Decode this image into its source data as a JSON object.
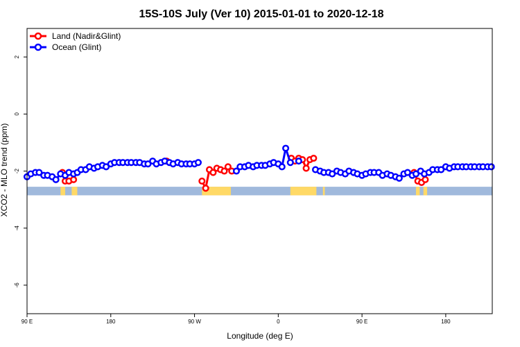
{
  "chart_data": {
    "type": "line",
    "title": "15S-10S July (Ver 10)   2015-01-01 to 2020-12-18",
    "xlabel": "Longitude (deg E)",
    "ylabel": "XCO2 - MLO trend (ppm)",
    "xlim": [
      90,
      590
    ],
    "ylim": [
      -7,
      3
    ],
    "x_ticks": [
      {
        "value": 90,
        "label": "90 E"
      },
      {
        "value": 180,
        "label": "180"
      },
      {
        "value": 270,
        "label": "90 W"
      },
      {
        "value": 360,
        "label": "0"
      },
      {
        "value": 450,
        "label": "90 E"
      },
      {
        "value": 540,
        "label": "180"
      }
    ],
    "y_ticks": [
      -6,
      -4,
      -2,
      0,
      2
    ],
    "grid": false,
    "legend_position": "top-left",
    "series": [
      {
        "name": "Land (Nadir&Glint)",
        "color": "#ff0000",
        "x": [
          128,
          131,
          135,
          140,
          240,
          278,
          282,
          286,
          290,
          294,
          298,
          302,
          306,
          310,
          374,
          378,
          382,
          386,
          390,
          394,
          398,
          506,
          510,
          514,
          518
        ],
        "y": [
          -2.05,
          -2.35,
          -2.35,
          -2.3,
          -1.65,
          -2.35,
          -2.6,
          -1.95,
          -2.05,
          -1.9,
          -1.95,
          -2.0,
          -1.85,
          -2.0,
          -1.55,
          -1.65,
          -1.55,
          -1.6,
          -1.9,
          -1.6,
          -1.55,
          -2.05,
          -2.35,
          -2.4,
          -2.3
        ]
      },
      {
        "name": "Ocean (Glint)",
        "color": "#0000ff",
        "x": [
          90,
          94,
          99,
          103,
          108,
          112,
          117,
          121,
          126,
          131,
          135,
          140,
          144,
          148,
          153,
          157,
          162,
          166,
          171,
          175,
          180,
          184,
          189,
          193,
          198,
          202,
          207,
          211,
          216,
          220,
          225,
          229,
          234,
          238,
          243,
          247,
          252,
          256,
          261,
          265,
          270,
          274,
          315,
          319,
          324,
          328,
          333,
          337,
          342,
          346,
          351,
          355,
          360,
          364,
          368,
          373,
          382,
          400,
          405,
          409,
          414,
          418,
          423,
          427,
          432,
          436,
          441,
          445,
          450,
          454,
          459,
          463,
          468,
          472,
          477,
          481,
          486,
          490,
          495,
          499,
          504,
          508,
          513,
          517,
          522,
          526,
          531,
          535,
          540,
          544,
          549,
          553,
          558,
          562,
          567,
          571,
          576,
          580,
          585,
          589
        ],
        "y": [
          -2.2,
          -2.1,
          -2.05,
          -2.05,
          -2.15,
          -2.15,
          -2.2,
          -2.3,
          -2.1,
          -2.15,
          -2.05,
          -2.1,
          -2.05,
          -1.95,
          -1.95,
          -1.85,
          -1.9,
          -1.85,
          -1.8,
          -1.85,
          -1.75,
          -1.7,
          -1.7,
          -1.7,
          -1.7,
          -1.7,
          -1.7,
          -1.7,
          -1.75,
          -1.75,
          -1.65,
          -1.75,
          -1.7,
          -1.65,
          -1.7,
          -1.75,
          -1.7,
          -1.75,
          -1.75,
          -1.75,
          -1.75,
          -1.7,
          -2.0,
          -1.85,
          -1.85,
          -1.8,
          -1.85,
          -1.8,
          -1.8,
          -1.8,
          -1.75,
          -1.7,
          -1.75,
          -1.85,
          -1.2,
          -1.7,
          -1.65,
          -1.95,
          -2.0,
          -2.05,
          -2.05,
          -2.1,
          -2.0,
          -2.05,
          -2.1,
          -2.0,
          -2.05,
          -2.1,
          -2.15,
          -2.1,
          -2.05,
          -2.05,
          -2.05,
          -2.15,
          -2.1,
          -2.15,
          -2.2,
          -2.25,
          -2.1,
          -2.05,
          -2.15,
          -2.1,
          -2.0,
          -2.1,
          -2.05,
          -1.95,
          -1.95,
          -1.95,
          -1.85,
          -1.9,
          -1.85,
          -1.85,
          -1.85,
          -1.85,
          -1.85,
          -1.85,
          -1.85,
          -1.85,
          -1.85,
          -1.85
        ]
      }
    ],
    "background_band": {
      "y_range": [
        -2.85,
        -2.55
      ],
      "color": "#a0b9dc",
      "land_color": "#ffd966",
      "land_segments": [
        [
          126,
          131
        ],
        [
          138,
          144
        ],
        [
          278,
          309
        ],
        [
          373,
          401
        ],
        [
          408,
          410
        ],
        [
          508,
          512
        ],
        [
          516,
          520
        ]
      ]
    }
  }
}
